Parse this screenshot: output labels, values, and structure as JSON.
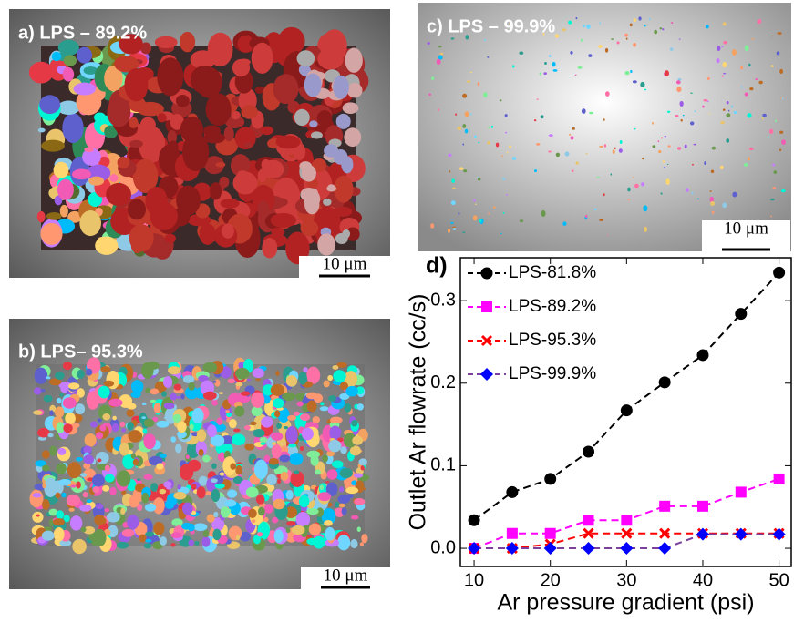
{
  "panels": [
    {
      "label": "a) LPS – 89.2%",
      "scale_bar": "10 μm"
    },
    {
      "label": "b) LPS– 95.3%",
      "scale_bar": "10 μm"
    },
    {
      "label": "c) LPS – 99.9%",
      "scale_bar": "10 μm"
    }
  ],
  "chart_data": {
    "type": "line",
    "panel_label": "d)",
    "x_label": "Ar pressure gradient (psi)",
    "y_label": "Outlet Ar flowrate (cc/s)",
    "x": [
      10,
      15,
      20,
      25,
      30,
      35,
      40,
      45,
      50
    ],
    "series": [
      {
        "name": "LPS-81.8%",
        "color": "#000000",
        "line_color": "#000000",
        "marker": "circle",
        "values": [
          0.034,
          0.068,
          0.084,
          0.117,
          0.167,
          0.201,
          0.234,
          0.284,
          0.334
        ]
      },
      {
        "name": "LPS-89.2%",
        "color": "#ff00ff",
        "line_color": "#ff00ff",
        "marker": "square",
        "values": [
          0.0,
          0.018,
          0.018,
          0.034,
          0.034,
          0.051,
          0.051,
          0.068,
          0.084
        ]
      },
      {
        "name": "LPS-95.3%",
        "color": "#ff0000",
        "line_color": "#ff0000",
        "marker": "x",
        "values": [
          0.0,
          0.0,
          0.005,
          0.018,
          0.018,
          0.018,
          0.018,
          0.018,
          0.018
        ]
      },
      {
        "name": "LPS-99.9%",
        "color": "#0000ff",
        "line_color": "#7b3f9e",
        "marker": "diamond",
        "values": [
          0.0,
          0.0,
          0.0,
          0.0,
          0.0,
          0.0,
          0.017,
          0.017,
          0.017
        ]
      }
    ],
    "xlim": [
      8.2,
      51.6
    ],
    "ylim": [
      -0.022,
      0.352
    ],
    "xticks": [
      10,
      20,
      30,
      40,
      50
    ],
    "yticks": [
      {
        "value": 0,
        "label": "0.0"
      },
      0.1,
      0.2,
      0.3
    ],
    "legend": "upper left",
    "grid": false
  }
}
